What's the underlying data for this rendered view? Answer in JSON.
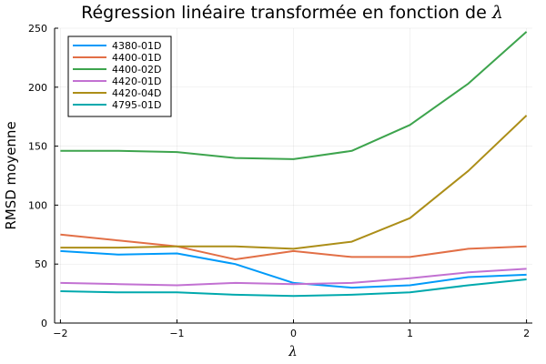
{
  "chart_data": {
    "type": "line",
    "title": "Régression linéaire transformée en fonction de ",
    "title_symbol": "λ",
    "xlabel": "λ",
    "ylabel": "RMSD moyenne",
    "xlim": [
      -2.05,
      2.05
    ],
    "ylim": [
      0,
      250
    ],
    "x_ticks": [
      -2,
      -1,
      0,
      1,
      2
    ],
    "x_tick_labels": [
      "−2",
      "−1",
      "0",
      "1",
      "2"
    ],
    "y_ticks": [
      0,
      50,
      100,
      150,
      200,
      250
    ],
    "y_tick_labels": [
      "0",
      "50",
      "100",
      "150",
      "200",
      "250"
    ],
    "grid": true,
    "legend_position": "top-left",
    "x": [
      -2,
      -1.5,
      -1,
      -0.5,
      0,
      0.5,
      1,
      1.5,
      2
    ],
    "series": [
      {
        "name": "4380-01D",
        "color": "#009af9",
        "values": [
          61,
          58,
          59,
          50,
          34,
          30,
          32,
          39,
          41
        ]
      },
      {
        "name": "4400-01D",
        "color": "#e26f46",
        "values": [
          75,
          70,
          65,
          54,
          61,
          56,
          56,
          63,
          65
        ]
      },
      {
        "name": "4400-02D",
        "color": "#3da44d",
        "values": [
          146,
          146,
          145,
          140,
          139,
          146,
          168,
          203,
          247
        ]
      },
      {
        "name": "4420-01D",
        "color": "#c271d2",
        "values": [
          34,
          33,
          32,
          34,
          33,
          34,
          38,
          43,
          46
        ]
      },
      {
        "name": "4420-04D",
        "color": "#ac8e18",
        "values": [
          64,
          64,
          65,
          65,
          63,
          69,
          89,
          129,
          176
        ]
      },
      {
        "name": "4795-01D",
        "color": "#00a9ad",
        "values": [
          27,
          26,
          26,
          24,
          23,
          24,
          26,
          32,
          37
        ]
      }
    ]
  }
}
